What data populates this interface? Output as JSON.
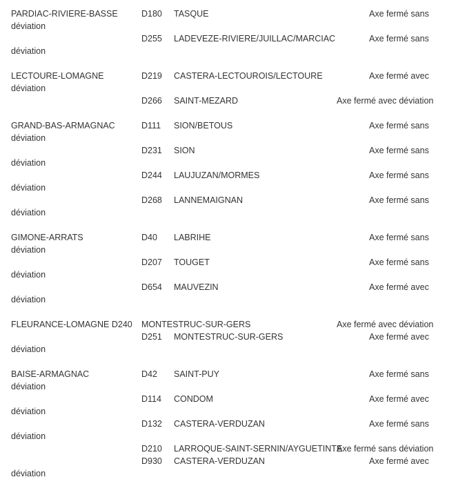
{
  "sections": [
    [
      {
        "canton": "PARDIAC-RIVIERE-BASSE",
        "road": "D180",
        "place": "TASQUE",
        "status": "Axe fermé sans"
      },
      {
        "wrap": "déviation"
      },
      {
        "road": "D255",
        "place": "LADEVEZE-RIVIERE/JUILLAC/MARCIAC",
        "status": "Axe fermé sans"
      },
      {
        "wrap": "déviation"
      }
    ],
    [
      {
        "canton": "LECTOURE-LOMAGNE",
        "road": "D219",
        "place": "CASTERA-LECTOUROIS/LECTOURE",
        "status": "Axe fermé avec"
      },
      {
        "wrap": "déviation"
      },
      {
        "road": "D266",
        "place": "SAINT-MEZARD",
        "status_full": "Axe fermé avec déviation"
      }
    ],
    [
      {
        "canton": "GRAND-BAS-ARMAGNAC",
        "road": "D111",
        "place": "SION/BETOUS",
        "status": "Axe fermé sans"
      },
      {
        "wrap": "déviation"
      },
      {
        "road": "D231",
        "place": "SION",
        "status": "Axe fermé sans"
      },
      {
        "wrap": "déviation"
      },
      {
        "road": "D244",
        "place": "LAUJUZAN/MORMES",
        "status": "Axe fermé sans"
      },
      {
        "wrap": "déviation"
      },
      {
        "road": "D268",
        "place": "LANNEMAIGNAN",
        "status": "Axe fermé sans"
      },
      {
        "wrap": "déviation"
      }
    ],
    [
      {
        "canton": "GIMONE-ARRATS",
        "road": "D40",
        "place": "LABRIHE",
        "status": "Axe fermé sans"
      },
      {
        "wrap": "déviation"
      },
      {
        "road": "D207",
        "place": "TOUGET",
        "status": "Axe fermé sans"
      },
      {
        "wrap": "déviation"
      },
      {
        "road": "D654",
        "place": "MAUVEZIN",
        "status": "Axe fermé avec"
      },
      {
        "wrap": "déviation"
      }
    ],
    [
      {
        "canton": "FLEURANCE-LOMAGNE D240",
        "road": "MONTESTRUC-SUR-GERS",
        "status_full": "Axe fermé avec déviation"
      },
      {
        "road": "D251",
        "place": "MONTESTRUC-SUR-GERS",
        "status": "Axe fermé avec"
      },
      {
        "wrap": "déviation"
      }
    ],
    [
      {
        "canton": "BAISE-ARMAGNAC",
        "road": "D42",
        "place": "SAINT-PUY",
        "status": "Axe fermé sans"
      },
      {
        "wrap": "déviation"
      },
      {
        "road": "D114",
        "place": "CONDOM",
        "status": "Axe fermé avec"
      },
      {
        "wrap": "déviation"
      },
      {
        "road": "D132",
        "place": "CASTERA-VERDUZAN",
        "status": "Axe fermé sans"
      },
      {
        "wrap": "déviation"
      },
      {
        "road": "D210",
        "place": "LARROQUE-SAINT-SERNIN/AYGUETINTE",
        "status_full": "Axe fermé sans déviation"
      },
      {
        "road": "D930",
        "place": "CASTERA-VERDUZAN",
        "status": "Axe fermé avec"
      },
      {
        "wrap": "déviation"
      }
    ]
  ]
}
